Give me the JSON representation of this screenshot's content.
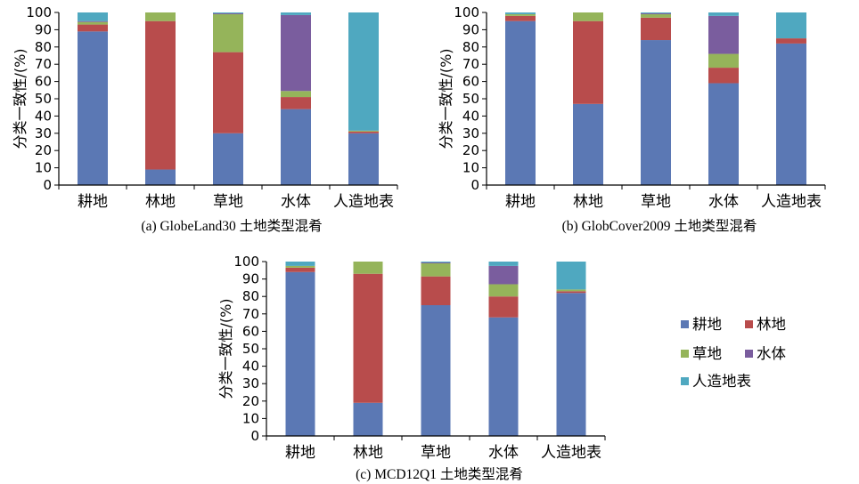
{
  "colors": {
    "耕地": "#5b78b4",
    "林地": "#b84c4c",
    "草地": "#95b45a",
    "水体": "#7a5d9e",
    "人造地表": "#4fa8c0"
  },
  "legend": [
    "耕地",
    "林地",
    "草地",
    "水体",
    "人造地表"
  ],
  "chart_data": [
    {
      "type": "bar",
      "stacked": true,
      "caption": "(a) GlobeLand30 土地类型混肴",
      "ylabel": "分类一致性/(%)",
      "ylim": [
        0,
        100
      ],
      "yticks": [
        0,
        10,
        20,
        30,
        40,
        50,
        60,
        70,
        80,
        90,
        100
      ],
      "categories": [
        "耕地",
        "林地",
        "草地",
        "水体",
        "人造地表"
      ],
      "series": [
        {
          "name": "耕地",
          "values": [
            89,
            9,
            30,
            44,
            30
          ]
        },
        {
          "name": "林地",
          "values": [
            4,
            86,
            47,
            7,
            1
          ]
        },
        {
          "name": "草地",
          "values": [
            1.5,
            5,
            22,
            3.5,
            0.5
          ]
        },
        {
          "name": "水体",
          "values": [
            0.5,
            0,
            0.5,
            44,
            0
          ]
        },
        {
          "name": "人造地表",
          "values": [
            5,
            0,
            0.5,
            1.5,
            68.5
          ]
        }
      ]
    },
    {
      "type": "bar",
      "stacked": true,
      "caption": "(b) GlobCover2009 土地类型混肴",
      "ylabel": "分类一致性/(%)",
      "ylim": [
        0,
        100
      ],
      "yticks": [
        0,
        10,
        20,
        30,
        40,
        50,
        60,
        70,
        80,
        90,
        100
      ],
      "categories": [
        "耕地",
        "林地",
        "草地",
        "水体",
        "人造地表"
      ],
      "series": [
        {
          "name": "耕地",
          "values": [
            95,
            47,
            84,
            59,
            82
          ]
        },
        {
          "name": "林地",
          "values": [
            3,
            48,
            13,
            9,
            3
          ]
        },
        {
          "name": "草地",
          "values": [
            1,
            5,
            2,
            8,
            0
          ]
        },
        {
          "name": "水体",
          "values": [
            0,
            0,
            0.5,
            22,
            0
          ]
        },
        {
          "name": "人造地表",
          "values": [
            1,
            0,
            0.5,
            2,
            15
          ]
        }
      ]
    },
    {
      "type": "bar",
      "stacked": true,
      "caption": "(c) MCD12Q1 土地类型混肴",
      "ylabel": "分类一致性/(%)",
      "ylim": [
        0,
        100
      ],
      "yticks": [
        0,
        10,
        20,
        30,
        40,
        50,
        60,
        70,
        80,
        90,
        100
      ],
      "categories": [
        "耕地",
        "林地",
        "草地",
        "水体",
        "人造地表"
      ],
      "series": [
        {
          "name": "耕地",
          "values": [
            94,
            19,
            75,
            68,
            82
          ]
        },
        {
          "name": "林地",
          "values": [
            2.5,
            74,
            16.5,
            12,
            1
          ]
        },
        {
          "name": "草地",
          "values": [
            1,
            7,
            7.5,
            7,
            1
          ]
        },
        {
          "name": "水体",
          "values": [
            0,
            0,
            0.5,
            10.5,
            0
          ]
        },
        {
          "name": "人造地表",
          "values": [
            2.5,
            0,
            0.5,
            2.5,
            16
          ]
        }
      ]
    }
  ]
}
